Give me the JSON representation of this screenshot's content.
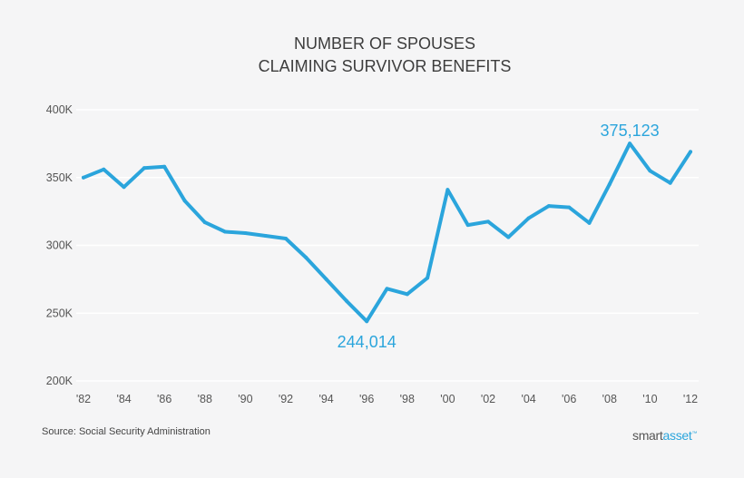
{
  "chart_data": {
    "type": "line",
    "title_lines": [
      "NUMBER OF SPOUSES",
      "CLAIMING SURVIVOR BENEFITS"
    ],
    "x": [
      1982,
      1983,
      1984,
      1985,
      1986,
      1987,
      1988,
      1989,
      1990,
      1991,
      1992,
      1993,
      1994,
      1995,
      1996,
      1997,
      1998,
      1999,
      2000,
      2001,
      2002,
      2003,
      2004,
      2005,
      2006,
      2007,
      2008,
      2009,
      2010,
      2011,
      2012
    ],
    "series": [
      {
        "values": [
          350000,
          356000,
          343000,
          357000,
          358000,
          333000,
          317000,
          310000,
          309000,
          307000,
          305000,
          291000,
          275000,
          259000,
          244014,
          268000,
          264000,
          276000,
          341000,
          315000,
          317500,
          306000,
          320000,
          329000,
          328000,
          316500,
          345000,
          375123,
          355000,
          346000,
          369000
        ],
        "color": "#2ba5dc"
      }
    ],
    "x_tick_labels": [
      "'82",
      "'84",
      "'86",
      "'88",
      "'90",
      "'92",
      "'94",
      "'96",
      "'98",
      "'00",
      "'02",
      "'04",
      "'06",
      "'08",
      "'10",
      "'12"
    ],
    "x_tick_values": [
      1982,
      1984,
      1986,
      1988,
      1990,
      1992,
      1994,
      1996,
      1998,
      2000,
      2002,
      2004,
      2006,
      2008,
      2010,
      2012
    ],
    "y_tick_labels": [
      "200K",
      "250K",
      "300K",
      "350K",
      "400K"
    ],
    "y_tick_values": [
      200000,
      250000,
      300000,
      350000,
      400000
    ],
    "ylim": [
      200000,
      400000
    ],
    "xlim": [
      1982,
      2012
    ],
    "grid": true,
    "annotations": [
      {
        "x": 1996,
        "y": 244014,
        "text": "244,014",
        "position": "below"
      },
      {
        "x": 2009,
        "y": 375123,
        "text": "375,123",
        "position": "above"
      }
    ]
  },
  "footer": {
    "source": "Source: Social Security Administration",
    "logo_part1": "smart",
    "logo_part2": "asset",
    "logo_tm": "™"
  },
  "colors": {
    "background": "#f5f5f6",
    "line": "#2ba5dc",
    "grid": "#ffffff"
  }
}
